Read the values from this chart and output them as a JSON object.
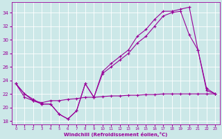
{
  "background_color": "#cce8e8",
  "grid_color": "#ffffff",
  "line_color": "#990099",
  "xlabel": "Windchill (Refroidissement éolien,°C)",
  "ylim": [
    17.5,
    35.5
  ],
  "xlim": [
    -0.5,
    23.5
  ],
  "yticks": [
    18,
    20,
    22,
    24,
    26,
    28,
    30,
    32,
    34
  ],
  "xticks": [
    0,
    1,
    2,
    3,
    4,
    5,
    6,
    7,
    8,
    9,
    10,
    11,
    12,
    13,
    14,
    15,
    16,
    17,
    18,
    19,
    20,
    21,
    22,
    23
  ],
  "series1_x": [
    0,
    1,
    2,
    3,
    4,
    5,
    6,
    7,
    8,
    9,
    10,
    11,
    12,
    13,
    14,
    15,
    16,
    17,
    18,
    19,
    20,
    21,
    22,
    23
  ],
  "series1_y": [
    23.5,
    22.0,
    21.2,
    20.5,
    20.5,
    19.0,
    18.3,
    19.5,
    23.5,
    21.5,
    25.3,
    26.5,
    27.5,
    28.5,
    30.5,
    31.5,
    33.0,
    34.2,
    34.2,
    34.5,
    34.8,
    28.5,
    22.8,
    22.0
  ],
  "series2_x": [
    0,
    1,
    2,
    3,
    4,
    5,
    6,
    7,
    8,
    9,
    10,
    11,
    12,
    13,
    14,
    15,
    16,
    17,
    18,
    19,
    20,
    21,
    22,
    23
  ],
  "series2_y": [
    23.5,
    22.0,
    21.0,
    20.5,
    20.5,
    19.0,
    18.3,
    19.5,
    23.5,
    21.5,
    25.0,
    26.0,
    27.0,
    28.0,
    29.5,
    30.5,
    32.0,
    33.5,
    34.0,
    34.2,
    30.7,
    28.5,
    22.5,
    22.0
  ],
  "series3_x": [
    0,
    1,
    2,
    3,
    4,
    5,
    6,
    7,
    8,
    9,
    10,
    11,
    12,
    13,
    14,
    15,
    16,
    17,
    18,
    19,
    20,
    21,
    22,
    23
  ],
  "series3_y": [
    23.5,
    21.5,
    21.0,
    20.7,
    21.0,
    21.0,
    21.2,
    21.3,
    21.5,
    21.5,
    21.6,
    21.7,
    21.7,
    21.8,
    21.8,
    21.9,
    21.9,
    22.0,
    22.0,
    22.0,
    22.0,
    22.0,
    22.0,
    22.0
  ]
}
